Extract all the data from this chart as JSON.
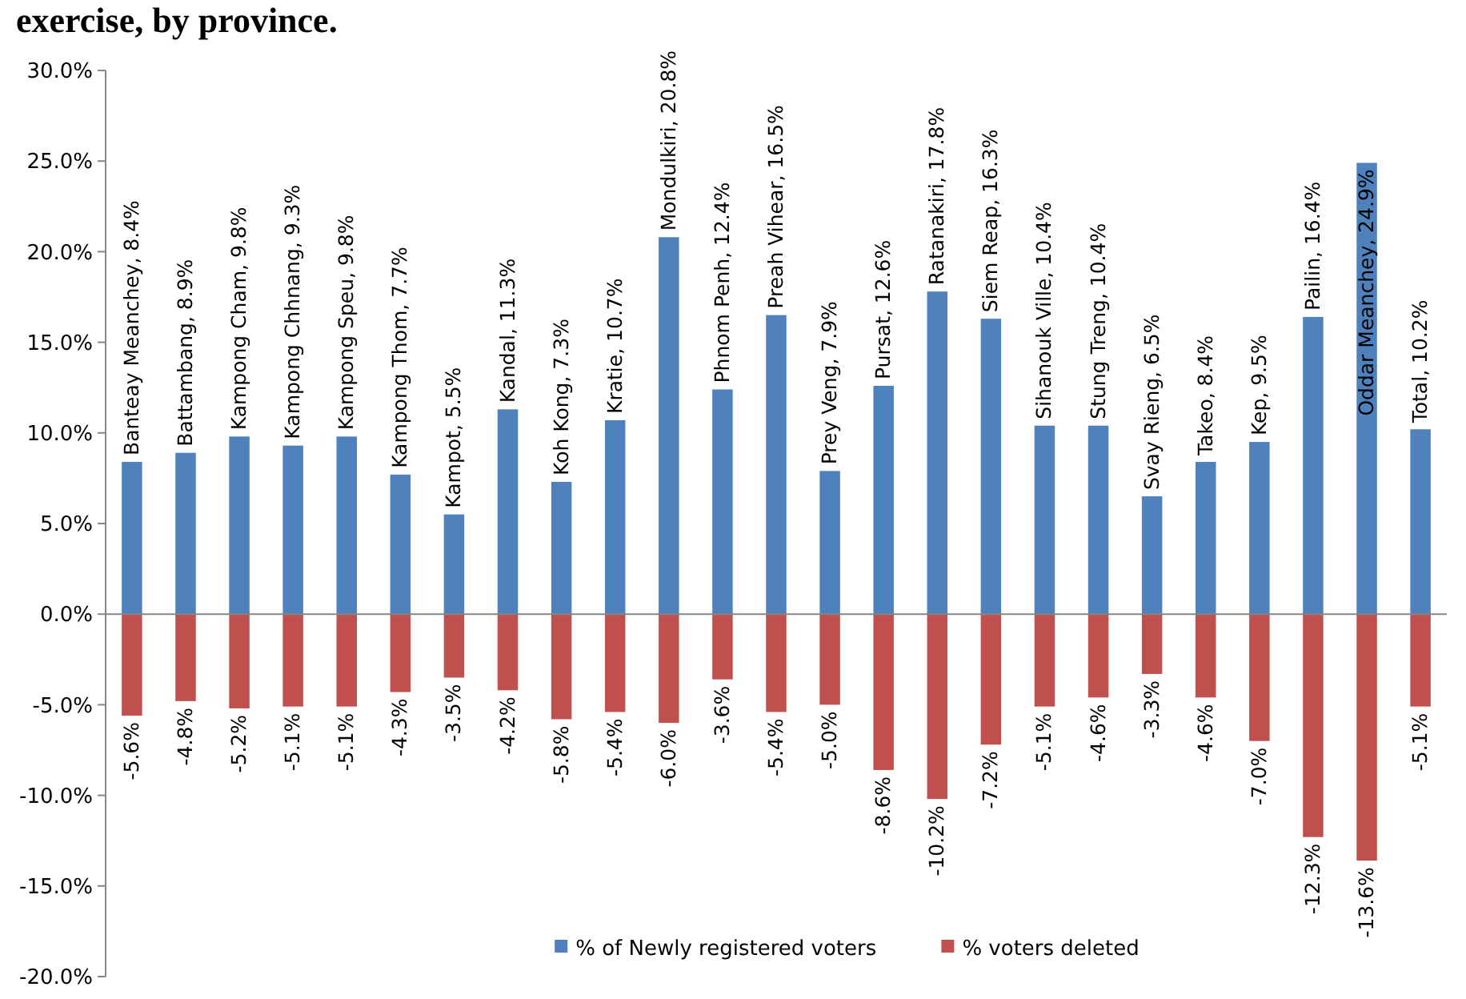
{
  "chart_data": {
    "type": "bar",
    "title": "exercise, by province.",
    "stacked": true,
    "categories": [
      "Banteay Meanchey",
      "Battambang",
      "Kampong Cham",
      "Kampong Chhnang",
      "Kampong Speu",
      "Kampong Thom",
      "Kampot",
      "Kandal",
      "Koh Kong",
      "Kratie",
      "Mondulkiri",
      "Phnom Penh",
      "Preah Vihear",
      "Prey Veng",
      "Pursat",
      "Ratanakiri",
      "Siem Reap",
      "Sihanouk Ville",
      "Stung Treng",
      "Svay Rieng",
      "Takeo",
      "Kep",
      "Pailin",
      "Oddar Meanchey",
      "Total"
    ],
    "series": [
      {
        "name": "% of Newly registered voters",
        "color": "#4f81bd",
        "values": [
          8.4,
          8.9,
          9.8,
          9.3,
          9.8,
          7.7,
          5.5,
          11.3,
          7.3,
          10.7,
          20.8,
          12.4,
          16.5,
          7.9,
          12.6,
          17.8,
          16.3,
          10.4,
          10.4,
          6.5,
          8.4,
          9.5,
          16.4,
          24.9,
          10.2
        ],
        "value_labels": [
          "Banteay Meanchey, 8.4%",
          "Battambang, 8.9%",
          "Kampong Cham, 9.8%",
          "Kampong Chhnang, 9.3%",
          "Kampong Speu, 9.8%",
          "Kampong Thom, 7.7%",
          "Kampot, 5.5%",
          "Kandal, 11.3%",
          "Koh Kong, 7.3%",
          "Kratie, 10.7%",
          "Mondulkiri, 20.8%",
          "Phnom Penh, 12.4%",
          "Preah Vihear, 16.5%",
          "Prey Veng, 7.9%",
          "Pursat, 12.6%",
          "Ratanakiri, 17.8%",
          "Siem Reap, 16.3%",
          "Sihanouk Ville, 10.4%",
          "Stung Treng, 10.4%",
          "Svay Rieng, 6.5%",
          "Takeo, 8.4%",
          "Kep, 9.5%",
          "Pailin, 16.4%",
          "Oddar Meanchey, 24.9%",
          "Total, 10.2%"
        ]
      },
      {
        "name": "% voters deleted",
        "color": "#c0504d",
        "values": [
          -5.6,
          -4.8,
          -5.2,
          -5.1,
          -5.1,
          -4.3,
          -3.5,
          -4.2,
          -5.8,
          -5.4,
          -6.0,
          -3.6,
          -5.4,
          -5.0,
          -8.6,
          -10.2,
          -7.2,
          -5.1,
          -4.6,
          -3.3,
          -4.6,
          -7.0,
          -12.3,
          -13.6,
          -5.1
        ],
        "value_labels": [
          "-5.6%",
          "-4.8%",
          "-5.2%",
          "-5.1%",
          "-5.1%",
          "-4.3%",
          "-3.5%",
          "-4.2%",
          "-5.8%",
          "-5.4%",
          "-6.0%",
          "-3.6%",
          "-5.4%",
          "-5.0%",
          "-8.6%",
          "-10.2%",
          "-7.2%",
          "-5.1%",
          "-4.6%",
          "-3.3%",
          "-4.6%",
          "-7.0%",
          "-12.3%",
          "-13.6%",
          "-5.1%"
        ]
      }
    ],
    "ylim": [
      -20,
      30
    ],
    "yticks": [
      {
        "value": -20,
        "label": "-20.0%"
      },
      {
        "value": -15,
        "label": "-15.0%"
      },
      {
        "value": -10,
        "label": "-10.0%"
      },
      {
        "value": -5,
        "label": "-5.0%"
      },
      {
        "value": 0,
        "label": "0.0%"
      },
      {
        "value": 5,
        "label": "5.0%"
      },
      {
        "value": 10,
        "label": "10.0%"
      },
      {
        "value": 15,
        "label": "15.0%"
      },
      {
        "value": 20,
        "label": "20.0%"
      },
      {
        "value": 25,
        "label": "25.0%"
      },
      {
        "value": 30,
        "label": "30.0%"
      }
    ],
    "legend": "bottom"
  }
}
